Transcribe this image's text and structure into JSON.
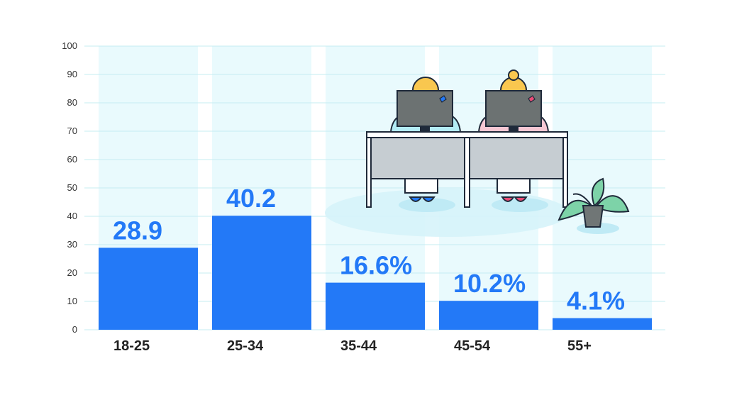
{
  "chart_data": {
    "type": "bar",
    "categories": [
      "18-25",
      "25-34",
      "35-44",
      "45-54",
      "55+"
    ],
    "values": [
      28.9,
      40.2,
      16.6,
      10.2,
      4.1
    ],
    "data_labels": [
      "28.9",
      "40.2",
      "16.6%",
      "10.2%",
      "4.1%"
    ],
    "title": "",
    "xlabel": "",
    "ylabel": "",
    "ylim": [
      0,
      100
    ],
    "yticks": [
      0,
      10,
      20,
      30,
      40,
      50,
      60,
      70,
      80,
      90,
      100
    ],
    "grid": true,
    "legend": "none"
  },
  "colors": {
    "bar": "#2379f7",
    "bar_background": "#e9fafd",
    "gridline": "#c5ecf2",
    "data_label": "#2379f7"
  },
  "illustration": {
    "icons": [
      "office-desk-icon",
      "worker-icon",
      "monitor-icon",
      "potted-plant-icon"
    ]
  }
}
